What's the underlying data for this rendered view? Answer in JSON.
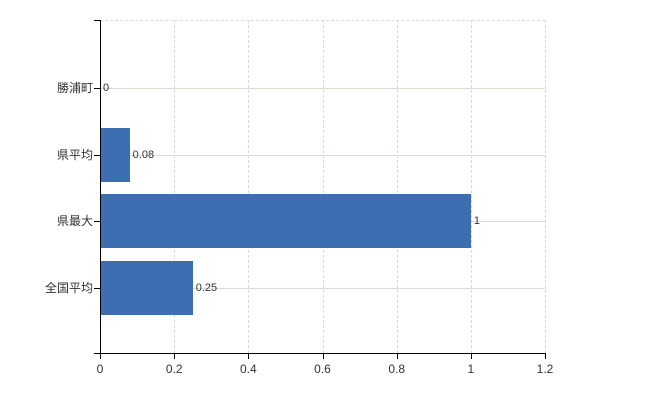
{
  "chart_data": {
    "type": "bar",
    "orientation": "horizontal",
    "title": "",
    "xlabel": "",
    "ylabel": "",
    "categories": [
      "勝浦町",
      "県平均",
      "県最大",
      "全国平均"
    ],
    "values": [
      0,
      0.08,
      1,
      0.25
    ],
    "value_labels": [
      "0",
      "0.08",
      "1",
      "0.25"
    ],
    "xlim": [
      0,
      1.2
    ],
    "x_ticks": [
      0,
      0.2,
      0.4,
      0.6,
      0.8,
      1,
      1.2
    ],
    "x_tick_labels": [
      "0",
      "0.2",
      "0.4",
      "0.6",
      "0.8",
      "1",
      "1.2"
    ],
    "legend": null,
    "grid": true
  },
  "colors": {
    "bar": "#3e6eb2",
    "h_gridline": "#d6e0d2",
    "v_gridline": "#d9d9d9",
    "border_dashed": "#d9d9d9",
    "axis": "#000000",
    "text": "#333333",
    "background": "#ffffff"
  }
}
